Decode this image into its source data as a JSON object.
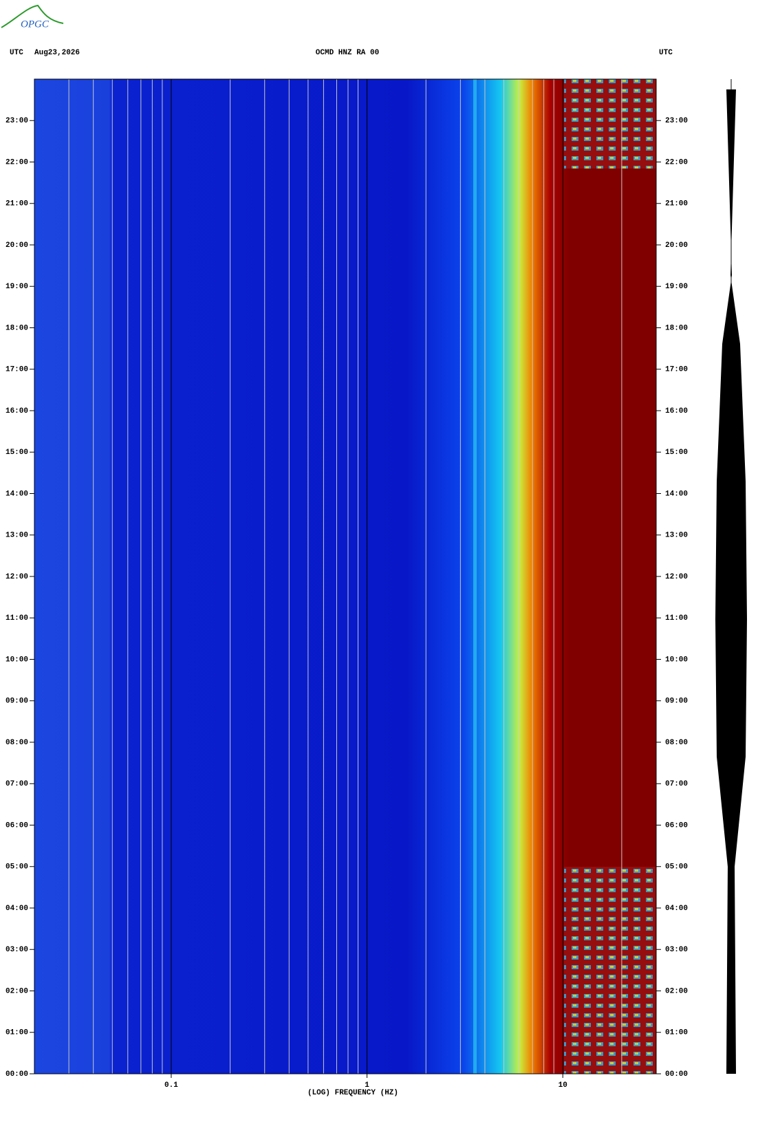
{
  "logo": "OPGC",
  "chart_data": {
    "type": "spectrogram",
    "title": "OCMD HNZ RA 00",
    "left_header": "UTC",
    "date": "Aug23,2026",
    "right_header": "UTC",
    "xlabel": "(LOG) FREQUENCY (HZ)",
    "xscale": "log",
    "xlim": [
      0.02,
      30
    ],
    "xticks": [
      0.1,
      1,
      10
    ],
    "xminorticks": [
      0.03,
      0.04,
      0.05,
      0.06,
      0.07,
      0.08,
      0.09,
      0.2,
      0.3,
      0.4,
      0.5,
      0.6,
      0.7,
      0.8,
      0.9,
      2,
      3,
      4,
      5,
      6,
      7,
      8,
      9,
      20
    ],
    "ylim": [
      0,
      24
    ],
    "yticks": [
      {
        "value": 0,
        "label": "00:00"
      },
      {
        "value": 1,
        "label": "01:00"
      },
      {
        "value": 2,
        "label": "02:00"
      },
      {
        "value": 3,
        "label": "03:00"
      },
      {
        "value": 4,
        "label": "04:00"
      },
      {
        "value": 5,
        "label": "05:00"
      },
      {
        "value": 6,
        "label": "06:00"
      },
      {
        "value": 7,
        "label": "07:00"
      },
      {
        "value": 8,
        "label": "08:00"
      },
      {
        "value": 9,
        "label": "09:00"
      },
      {
        "value": 10,
        "label": "10:00"
      },
      {
        "value": 11,
        "label": "11:00"
      },
      {
        "value": 12,
        "label": "12:00"
      },
      {
        "value": 13,
        "label": "13:00"
      },
      {
        "value": 14,
        "label": "14:00"
      },
      {
        "value": 15,
        "label": "15:00"
      },
      {
        "value": 16,
        "label": "16:00"
      },
      {
        "value": 17,
        "label": "17:00"
      },
      {
        "value": 18,
        "label": "18:00"
      },
      {
        "value": 19,
        "label": "19:00"
      },
      {
        "value": 20,
        "label": "20:00"
      },
      {
        "value": 21,
        "label": "21:00"
      },
      {
        "value": 22,
        "label": "22:00"
      },
      {
        "value": 23,
        "label": "23:00"
      }
    ]
  }
}
